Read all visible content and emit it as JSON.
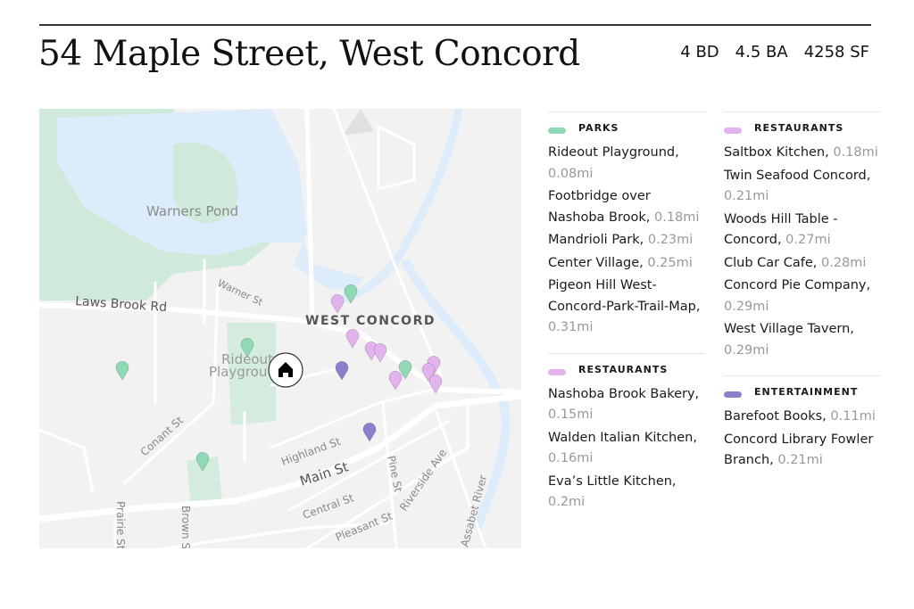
{
  "header": {
    "title": "54 Maple Street, West Concord",
    "beds": "4 BD",
    "baths": "4.5 BA",
    "sqft": "4258 SF"
  },
  "colors": {
    "parks": "#8fd9b6",
    "restaurants": "#e3b3ef",
    "entertainment": "#8c80cc"
  },
  "map": {
    "labels": {
      "pond": "Warners Pond",
      "laws_brook": "Laws Brook Rd",
      "warner": "Warner St",
      "west_concord": "WEST CONCORD",
      "rideout1": "Rideout",
      "rideout2": "Playgrou",
      "conant": "Conant St",
      "highland": "Highland St",
      "main": "Main St",
      "central": "Central St",
      "pleasant": "Pleasant St",
      "pine": "Pine St",
      "riverside": "Riverside Ave",
      "assabet": "Assabet River",
      "prairie": "Prairie St",
      "brown": "Brown St"
    },
    "home_icon": "home-icon",
    "pin_icon": "map-pin-icon"
  },
  "lists": {
    "parks": {
      "heading": "PARKS",
      "items": [
        {
          "name": "Rideout Playground,",
          "dist": "0.08mi"
        },
        {
          "name": "Footbridge over Nashoba Brook,",
          "dist": "0.18mi"
        },
        {
          "name": "Mandrioli Park,",
          "dist": "0.23mi"
        },
        {
          "name": "Center Village,",
          "dist": "0.25mi"
        },
        {
          "name": "Pigeon Hill West-Concord-Park-Trail-Map,",
          "dist": "0.31mi"
        }
      ]
    },
    "restaurants_a": {
      "heading": "RESTAURANTS",
      "items": [
        {
          "name": "Nashoba Brook Bakery,",
          "dist": "0.15mi"
        },
        {
          "name": "Walden Italian Kitchen,",
          "dist": "0.16mi"
        },
        {
          "name": "Eva’s Little Kitchen,",
          "dist": "0.2mi"
        }
      ]
    },
    "restaurants_b": {
      "heading": "RESTAURANTS",
      "items": [
        {
          "name": "Saltbox Kitchen,",
          "dist": "0.18mi"
        },
        {
          "name": "Twin Seafood Concord,",
          "dist": "0.21mi"
        },
        {
          "name": "Woods Hill Table - Concord,",
          "dist": "0.27mi"
        },
        {
          "name": "Club Car Cafe,",
          "dist": "0.28mi"
        },
        {
          "name": "Concord Pie Company,",
          "dist": "0.29mi"
        },
        {
          "name": "West Village Tavern,",
          "dist": "0.29mi"
        }
      ]
    },
    "entertainment": {
      "heading": "ENTERTAINMENT",
      "items": [
        {
          "name": "Barefoot Books,",
          "dist": "0.11mi"
        },
        {
          "name": "Concord Library Fowler Branch,",
          "dist": "0.21mi"
        }
      ]
    }
  }
}
